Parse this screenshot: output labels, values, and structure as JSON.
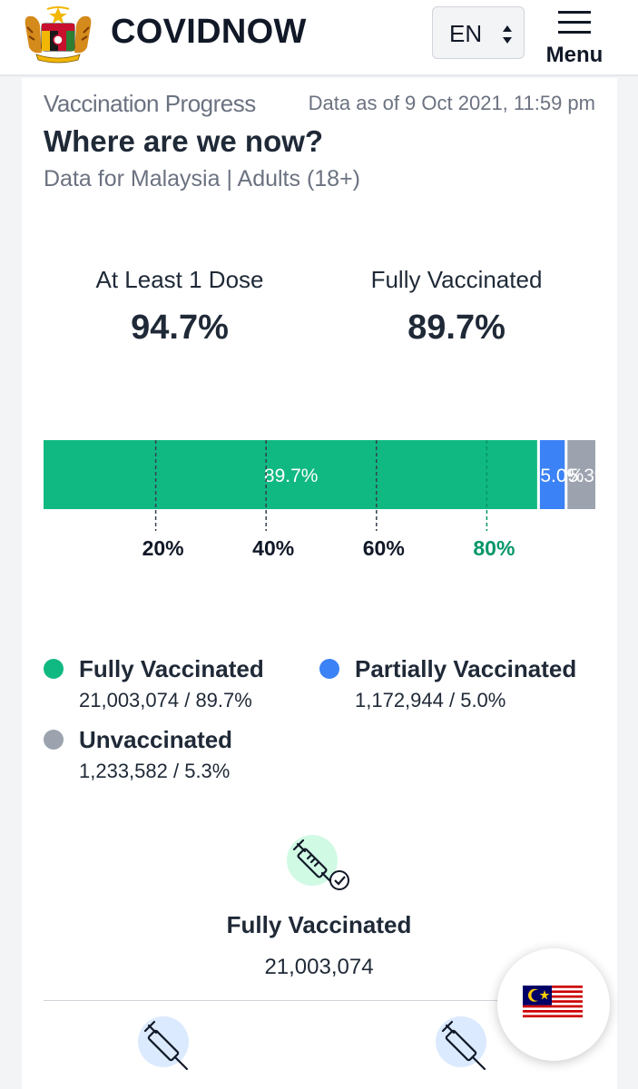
{
  "header": {
    "brand": "COVIDNOW",
    "language": "EN",
    "menu_label": "Menu",
    "icons": [
      "coat-of-arms-icon",
      "chevron-updown-icon",
      "hamburger-icon"
    ]
  },
  "vaccination": {
    "section_title": "Vaccination Progress",
    "data_as_of": "Data as of 9 Oct 2021, 11:59 pm",
    "heading": "Where are we now?",
    "subtitle": "Data for Malaysia | Adults (18+)",
    "at_least_one_label": "At Least 1 Dose",
    "at_least_one_value": "94.7%",
    "fully_label": "Fully Vaccinated",
    "fully_value": "89.7%"
  },
  "chart_data": {
    "type": "bar",
    "orientation": "horizontal-stacked",
    "segments": [
      {
        "name": "Fully Vaccinated",
        "value": 89.7,
        "label": "89.7%",
        "color": "#10b981"
      },
      {
        "name": "Partially Vaccinated",
        "value": 5.0,
        "label": "5.0%",
        "color": "#3b82f6"
      },
      {
        "name": "Unvaccinated",
        "value": 5.3,
        "label": "5.3%",
        "color": "#9ca3af"
      }
    ],
    "xlim": [
      0,
      100
    ],
    "ticks": [
      {
        "value": 20,
        "label": "20%"
      },
      {
        "value": 40,
        "label": "40%"
      },
      {
        "value": 60,
        "label": "60%"
      },
      {
        "value": 80,
        "label": "80%",
        "highlight": true
      }
    ],
    "highlight_color": "#059669"
  },
  "legend": [
    {
      "name": "Fully Vaccinated",
      "value": "21,003,074 / 89.7%",
      "color": "#10b981"
    },
    {
      "name": "Partially Vaccinated",
      "value": "1,172,944 / 5.0%",
      "color": "#3b82f6"
    },
    {
      "name": "Unvaccinated",
      "value": "1,233,582 / 5.3%",
      "color": "#9ca3af"
    }
  ],
  "detail": {
    "title": "Fully Vaccinated",
    "value": "21,003,074",
    "icons": [
      "syringe-check-icon",
      "syringe-icon",
      "syringe-half-icon"
    ]
  },
  "floating": {
    "icon": "malaysia-flag-icon"
  }
}
